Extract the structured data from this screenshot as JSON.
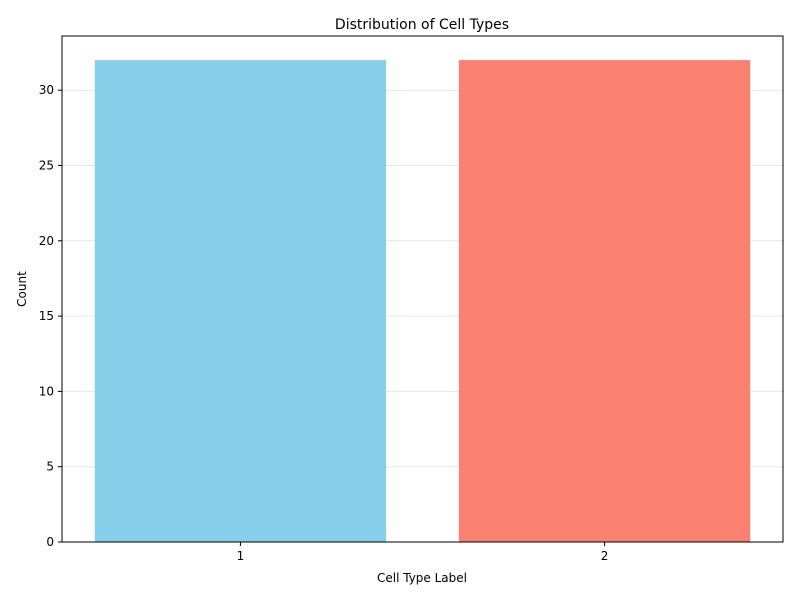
{
  "chart_data": {
    "type": "bar",
    "title": "Distribution of Cell Types",
    "xlabel": "Cell Type Label",
    "ylabel": "Count",
    "categories": [
      "1",
      "2"
    ],
    "values": [
      32,
      32
    ],
    "bar_colors": [
      "#87ceeb",
      "#fa8072"
    ],
    "ylim": [
      0,
      33.6
    ],
    "yticks": [
      0,
      5,
      10,
      15,
      20,
      25,
      30
    ],
    "grid": {
      "axis": "y",
      "on": true,
      "color": "#e6e6e6"
    }
  }
}
